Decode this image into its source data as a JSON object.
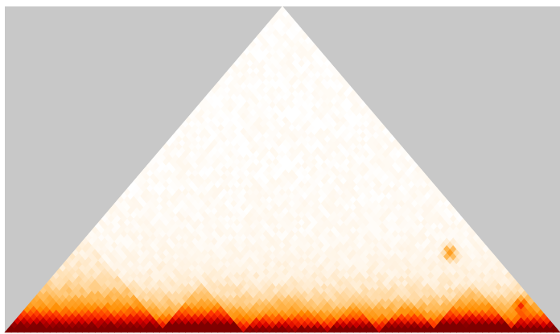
{
  "chart_data": {
    "type": "heatmap",
    "variant": "triangular-contact-map",
    "n_bins": 86,
    "title": "",
    "xlabel": "",
    "ylabel": "",
    "value_range": [
      0,
      1
    ],
    "colormap": [
      "#ffffff",
      "#fff2e0",
      "#ffd8a0",
      "#ffb347",
      "#ff8c00",
      "#ff3300",
      "#d40000",
      "#800000"
    ],
    "background_color": "#c8c8c8",
    "tads": [
      {
        "start_bin": 0,
        "end_bin": 24,
        "strength": 0.55
      },
      {
        "start_bin": 24,
        "end_bin": 36,
        "strength": 0.82
      },
      {
        "start_bin": 37,
        "end_bin": 49,
        "strength": 0.25
      },
      {
        "start_bin": 50,
        "end_bin": 57,
        "strength": 0.6
      },
      {
        "start_bin": 58,
        "end_bin": 66,
        "strength": 0.55
      },
      {
        "start_bin": 66,
        "end_bin": 78,
        "strength": 0.8
      },
      {
        "start_bin": 78,
        "end_bin": 86,
        "strength": 0.5
      }
    ],
    "loops": [
      {
        "bin_i": 58,
        "bin_j": 79,
        "strength": 0.9
      },
      {
        "bin_i": 76,
        "bin_j": 83,
        "strength": 0.7
      }
    ]
  }
}
